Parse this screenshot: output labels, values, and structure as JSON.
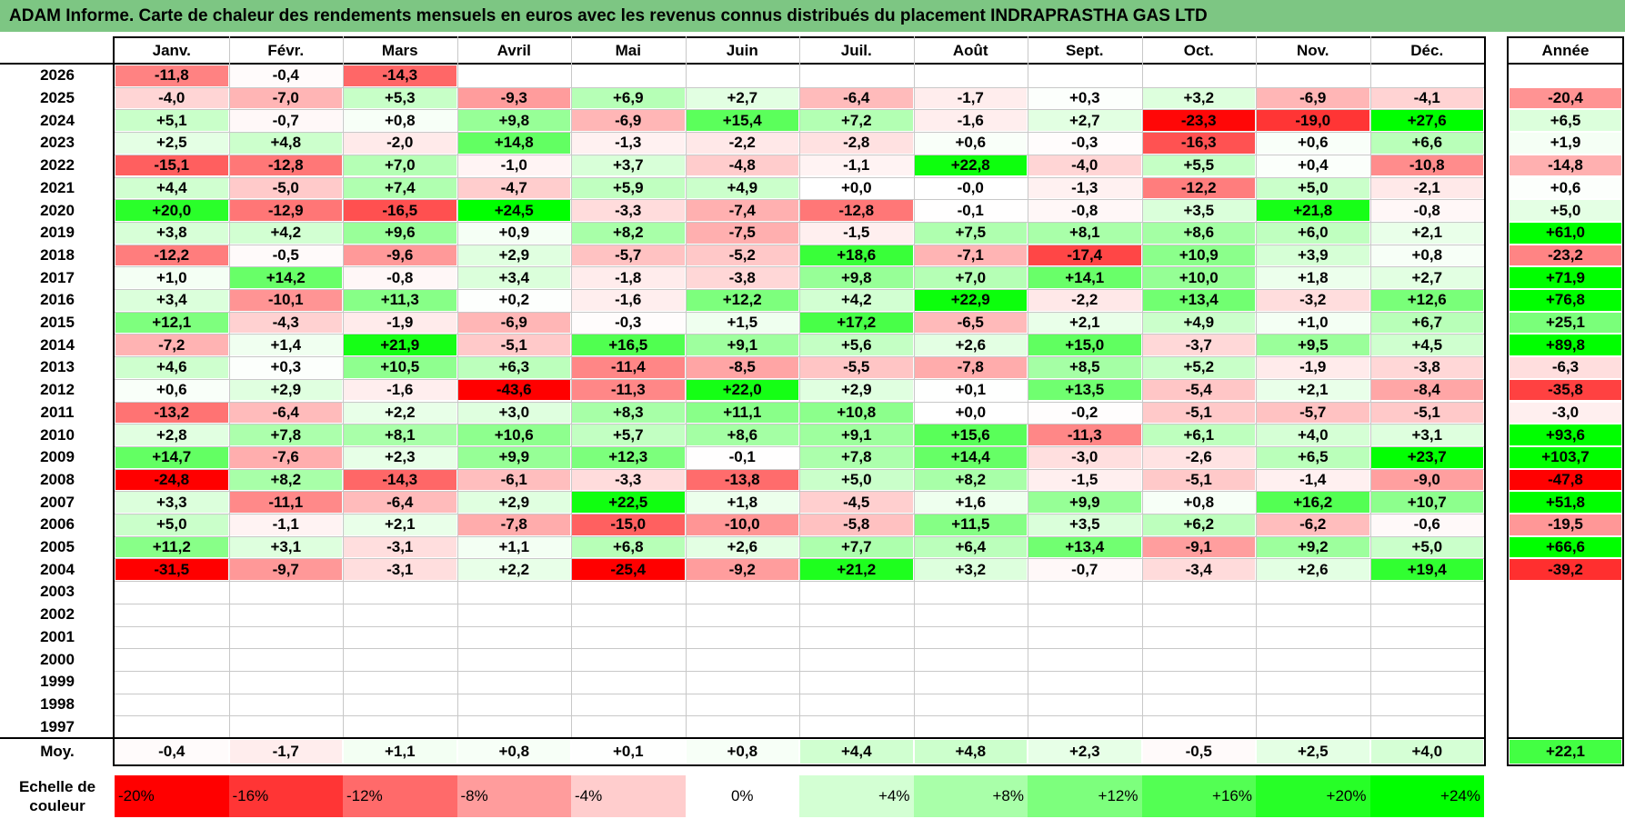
{
  "title": "ADAM Informe. Carte de chaleur des rendements mensuels en euros avec les revenus connus distribués du placement INDRAPRASTHA GAS LTD",
  "chart_data": {
    "type": "heatmap",
    "title": "ADAM Informe. Carte de chaleur des rendements mensuels en euros avec les revenus connus distribués du placement INDRAPRASTHA GAS LTD",
    "columns": [
      "Janv.",
      "Févr.",
      "Mars",
      "Avril",
      "Mai",
      "Juin",
      "Juil.",
      "Août",
      "Sept.",
      "Oct.",
      "Nov.",
      "Déc."
    ],
    "year_column_label": "Année",
    "rows": [
      {
        "year": "2026",
        "months": [
          "-11,8",
          "-0,4",
          "-14,3",
          "",
          "",
          "",
          "",
          "",
          "",
          "",
          "",
          ""
        ],
        "annual": ""
      },
      {
        "year": "2025",
        "months": [
          "-4,0",
          "-7,0",
          "+5,3",
          "-9,3",
          "+6,9",
          "+2,7",
          "-6,4",
          "-1,7",
          "+0,3",
          "+3,2",
          "-6,9",
          "-4,1"
        ],
        "annual": "-20,4"
      },
      {
        "year": "2024",
        "months": [
          "+5,1",
          "-0,7",
          "+0,8",
          "+9,8",
          "-6,9",
          "+15,4",
          "+7,2",
          "-1,6",
          "+2,7",
          "-23,3",
          "-19,0",
          "+27,6"
        ],
        "annual": "+6,5"
      },
      {
        "year": "2023",
        "months": [
          "+2,5",
          "+4,8",
          "-2,0",
          "+14,8",
          "-1,3",
          "-2,2",
          "-2,8",
          "+0,6",
          "-0,3",
          "-16,3",
          "+0,6",
          "+6,6"
        ],
        "annual": "+1,9"
      },
      {
        "year": "2022",
        "months": [
          "-15,1",
          "-12,8",
          "+7,0",
          "-1,0",
          "+3,7",
          "-4,8",
          "-1,1",
          "+22,8",
          "-4,0",
          "+5,5",
          "+0,4",
          "-10,8"
        ],
        "annual": "-14,8"
      },
      {
        "year": "2021",
        "months": [
          "+4,4",
          "-5,0",
          "+7,4",
          "-4,7",
          "+5,9",
          "+4,9",
          "+0,0",
          "-0,0",
          "-1,3",
          "-12,2",
          "+5,0",
          "-2,1"
        ],
        "annual": "+0,6"
      },
      {
        "year": "2020",
        "months": [
          "+20,0",
          "-12,9",
          "-16,5",
          "+24,5",
          "-3,3",
          "-7,4",
          "-12,8",
          "-0,1",
          "-0,8",
          "+3,5",
          "+21,8",
          "-0,8"
        ],
        "annual": "+5,0"
      },
      {
        "year": "2019",
        "months": [
          "+3,8",
          "+4,2",
          "+9,6",
          "+0,9",
          "+8,2",
          "-7,5",
          "-1,5",
          "+7,5",
          "+8,1",
          "+8,6",
          "+6,0",
          "+2,1"
        ],
        "annual": "+61,0"
      },
      {
        "year": "2018",
        "months": [
          "-12,2",
          "-0,5",
          "-9,6",
          "+2,9",
          "-5,7",
          "-5,2",
          "+18,6",
          "-7,1",
          "-17,4",
          "+10,9",
          "+3,9",
          "+0,8"
        ],
        "annual": "-23,2"
      },
      {
        "year": "2017",
        "months": [
          "+1,0",
          "+14,2",
          "-0,8",
          "+3,4",
          "-1,8",
          "-3,8",
          "+9,8",
          "+7,0",
          "+14,1",
          "+10,0",
          "+1,8",
          "+2,7"
        ],
        "annual": "+71,9"
      },
      {
        "year": "2016",
        "months": [
          "+3,4",
          "-10,1",
          "+11,3",
          "+0,2",
          "-1,6",
          "+12,2",
          "+4,2",
          "+22,9",
          "-2,2",
          "+13,4",
          "-3,2",
          "+12,6"
        ],
        "annual": "+76,8"
      },
      {
        "year": "2015",
        "months": [
          "+12,1",
          "-4,3",
          "-1,9",
          "-6,9",
          "-0,3",
          "+1,5",
          "+17,2",
          "-6,5",
          "+2,1",
          "+4,9",
          "+1,0",
          "+6,7"
        ],
        "annual": "+25,1"
      },
      {
        "year": "2014",
        "months": [
          "-7,2",
          "+1,4",
          "+21,9",
          "-5,1",
          "+16,5",
          "+9,1",
          "+5,6",
          "+2,6",
          "+15,0",
          "-3,7",
          "+9,5",
          "+4,5"
        ],
        "annual": "+89,8"
      },
      {
        "year": "2013",
        "months": [
          "+4,6",
          "+0,3",
          "+10,5",
          "+6,3",
          "-11,4",
          "-8,5",
          "-5,5",
          "-7,8",
          "+8,5",
          "+5,2",
          "-1,9",
          "-3,8"
        ],
        "annual": "-6,3"
      },
      {
        "year": "2012",
        "months": [
          "+0,6",
          "+2,9",
          "-1,6",
          "-43,6",
          "-11,3",
          "+22,0",
          "+2,9",
          "+0,1",
          "+13,5",
          "-5,4",
          "+2,1",
          "-8,4"
        ],
        "annual": "-35,8"
      },
      {
        "year": "2011",
        "months": [
          "-13,2",
          "-6,4",
          "+2,2",
          "+3,0",
          "+8,3",
          "+11,1",
          "+10,8",
          "+0,0",
          "-0,2",
          "-5,1",
          "-5,7",
          "-5,1"
        ],
        "annual": "-3,0"
      },
      {
        "year": "2010",
        "months": [
          "+2,8",
          "+7,8",
          "+8,1",
          "+10,6",
          "+5,7",
          "+8,6",
          "+9,1",
          "+15,6",
          "-11,3",
          "+6,1",
          "+4,0",
          "+3,1"
        ],
        "annual": "+93,6"
      },
      {
        "year": "2009",
        "months": [
          "+14,7",
          "-7,6",
          "+2,3",
          "+9,9",
          "+12,3",
          "-0,1",
          "+7,8",
          "+14,4",
          "-3,0",
          "-2,6",
          "+6,5",
          "+23,7"
        ],
        "annual": "+103,7"
      },
      {
        "year": "2008",
        "months": [
          "-24,8",
          "+8,2",
          "-14,3",
          "-6,1",
          "-3,3",
          "-13,8",
          "+5,0",
          "+8,2",
          "-1,5",
          "-5,1",
          "-1,4",
          "-9,0"
        ],
        "annual": "-47,8"
      },
      {
        "year": "2007",
        "months": [
          "+3,3",
          "-11,1",
          "-6,4",
          "+2,9",
          "+22,5",
          "+1,8",
          "-4,5",
          "+1,6",
          "+9,9",
          "+0,8",
          "+16,2",
          "+10,7"
        ],
        "annual": "+51,8"
      },
      {
        "year": "2006",
        "months": [
          "+5,0",
          "-1,1",
          "+2,1",
          "-7,8",
          "-15,0",
          "-10,0",
          "-5,8",
          "+11,5",
          "+3,5",
          "+6,2",
          "-6,2",
          "-0,6"
        ],
        "annual": "-19,5"
      },
      {
        "year": "2005",
        "months": [
          "+11,2",
          "+3,1",
          "-3,1",
          "+1,1",
          "+6,8",
          "+2,6",
          "+7,7",
          "+6,4",
          "+13,4",
          "-9,1",
          "+9,2",
          "+5,0"
        ],
        "annual": "+66,6"
      },
      {
        "year": "2004",
        "months": [
          "-31,5",
          "-9,7",
          "-3,1",
          "+2,2",
          "-25,4",
          "-9,2",
          "+21,2",
          "+3,2",
          "-0,7",
          "-3,4",
          "+2,6",
          "+19,4"
        ],
        "annual": "-39,2"
      },
      {
        "year": "2003",
        "months": [
          "",
          "",
          "",
          "",
          "",
          "",
          "",
          "",
          "",
          "",
          "",
          ""
        ],
        "annual": ""
      },
      {
        "year": "2002",
        "months": [
          "",
          "",
          "",
          "",
          "",
          "",
          "",
          "",
          "",
          "",
          "",
          ""
        ],
        "annual": ""
      },
      {
        "year": "2001",
        "months": [
          "",
          "",
          "",
          "",
          "",
          "",
          "",
          "",
          "",
          "",
          "",
          ""
        ],
        "annual": ""
      },
      {
        "year": "2000",
        "months": [
          "",
          "",
          "",
          "",
          "",
          "",
          "",
          "",
          "",
          "",
          "",
          ""
        ],
        "annual": ""
      },
      {
        "year": "1999",
        "months": [
          "",
          "",
          "",
          "",
          "",
          "",
          "",
          "",
          "",
          "",
          "",
          ""
        ],
        "annual": ""
      },
      {
        "year": "1998",
        "months": [
          "",
          "",
          "",
          "",
          "",
          "",
          "",
          "",
          "",
          "",
          "",
          ""
        ],
        "annual": ""
      },
      {
        "year": "1997",
        "months": [
          "",
          "",
          "",
          "",
          "",
          "",
          "",
          "",
          "",
          "",
          "",
          ""
        ],
        "annual": ""
      }
    ],
    "average": {
      "label": "Moy.",
      "months": [
        "-0,4",
        "-1,7",
        "+1,1",
        "+0,8",
        "+0,1",
        "+0,8",
        "+4,4",
        "+4,8",
        "+2,3",
        "-0,5",
        "+2,5",
        "+4,0"
      ],
      "annual": "+22,1"
    },
    "color_scale": {
      "caption": "Echelle de couleur",
      "stops": [
        {
          "label": "-20%",
          "color": "#ff0000"
        },
        {
          "label": "-16%",
          "color": "#ff3535"
        },
        {
          "label": "-12%",
          "color": "#ff6a6a"
        },
        {
          "label": "-8%",
          "color": "#ff9c9c"
        },
        {
          "label": "-4%",
          "color": "#ffcdcd"
        },
        {
          "label": "0%",
          "color": "#ffffff"
        },
        {
          "label": "+4%",
          "color": "#d3ffd3"
        },
        {
          "label": "+8%",
          "color": "#a9ffa9"
        },
        {
          "label": "+12%",
          "color": "#7dff7d"
        },
        {
          "label": "+16%",
          "color": "#53ff53"
        },
        {
          "label": "+20%",
          "color": "#27ff27"
        },
        {
          "label": "+24%",
          "color": "#00ff00"
        }
      ]
    }
  }
}
